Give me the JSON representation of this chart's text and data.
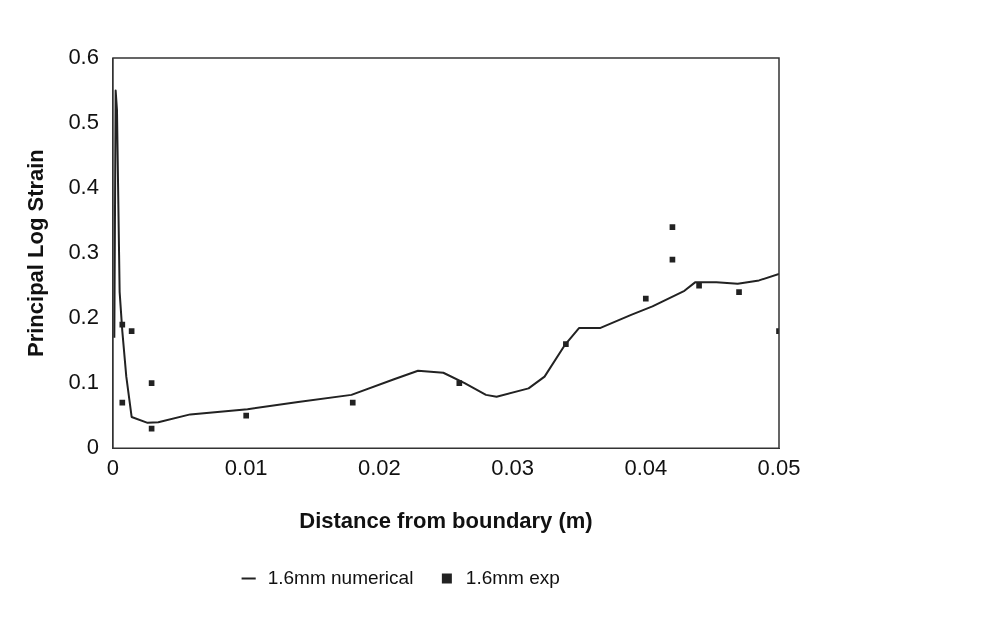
{
  "chart_data": {
    "type": "line",
    "xlabel": "Distance from boundary (m)",
    "ylabel": "Principal Log Strain",
    "xlim": [
      0,
      0.05
    ],
    "xticks": [
      {
        "value": 0,
        "label": "0"
      },
      {
        "value": 0.01,
        "label": "0.01"
      },
      {
        "value": 0.02,
        "label": "0.02"
      },
      {
        "value": 0.03,
        "label": "0.03"
      },
      {
        "value": 0.04,
        "label": "0.04"
      },
      {
        "value": 0.05,
        "label": "0.05"
      }
    ],
    "ylim": [
      0,
      0.6
    ],
    "yticks": [
      {
        "value": 0,
        "label": "0"
      },
      {
        "value": 0.1,
        "label": "0.1"
      },
      {
        "value": 0.2,
        "label": "0.2"
      },
      {
        "value": 0.3,
        "label": "0.3"
      },
      {
        "value": 0.4,
        "label": "0.4"
      },
      {
        "value": 0.5,
        "label": "0.5"
      },
      {
        "value": 0.6,
        "label": "0.6"
      }
    ],
    "grid": false,
    "legend": "bottom",
    "series": [
      {
        "name": "1.6mm numerical",
        "type": "line",
        "color": "#222222",
        "marker": "none",
        "line_style": "solid",
        "x": [
          0.0001,
          0.0002,
          0.0003,
          0.0005,
          0.0007,
          0.001,
          0.0014,
          0.0026,
          0.0034,
          0.0058,
          0.0101,
          0.0139,
          0.0179,
          0.0211,
          0.0229,
          0.0248,
          0.0264,
          0.028,
          0.0288,
          0.0312,
          0.0324,
          0.0339,
          0.035,
          0.0366,
          0.0389,
          0.0405,
          0.0429,
          0.0437,
          0.0453,
          0.0469,
          0.0485,
          0.05
        ],
        "values": [
          0.17,
          0.55,
          0.52,
          0.24,
          0.18,
          0.11,
          0.048,
          0.039,
          0.04,
          0.052,
          0.06,
          0.071,
          0.082,
          0.106,
          0.119,
          0.116,
          0.1,
          0.082,
          0.079,
          0.092,
          0.11,
          0.158,
          0.185,
          0.185,
          0.205,
          0.218,
          0.242,
          0.255,
          0.255,
          0.253,
          0.258,
          0.268
        ]
      },
      {
        "name": "1.6mm exp",
        "type": "scatter",
        "color": "#222222",
        "marker": "square",
        "x": [
          0.0007,
          0.0014,
          0.0007,
          0.0029,
          0.0029,
          0.01,
          0.018,
          0.026,
          0.034,
          0.04,
          0.042,
          0.042,
          0.044,
          0.047,
          0.05
        ],
        "values": [
          0.19,
          0.18,
          0.07,
          0.1,
          0.03,
          0.05,
          0.07,
          0.1,
          0.16,
          0.23,
          0.34,
          0.29,
          0.25,
          0.24,
          0.18
        ]
      }
    ]
  }
}
